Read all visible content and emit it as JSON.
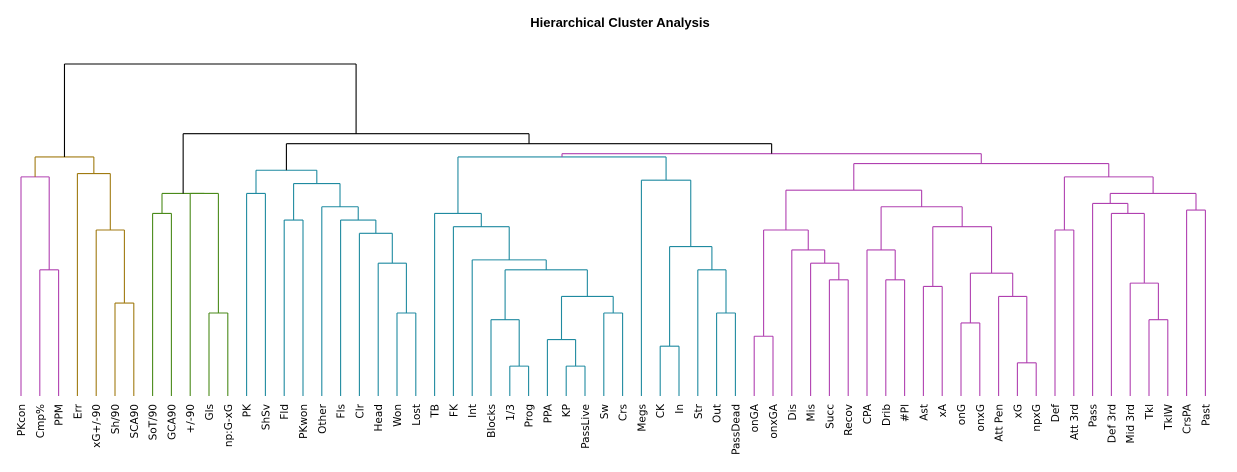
{
  "chart_data": {
    "type": "dendrogram",
    "title": "Hierarchical Cluster Analysis",
    "xlabel": "",
    "ylabel": "",
    "colors": {
      "root": "#000000",
      "clusterA": "#b040b0",
      "clusterB": "#a07a10",
      "clusterC": "#4a8a1a",
      "clusterD": "#1f8aa0",
      "clusterE": "#b040b0"
    },
    "leaves": [
      "PKcon",
      "Cmp%",
      "PPM",
      "Err",
      "xG+/-90",
      "Sh/90",
      "SCA90",
      "SoT/90",
      "GCA90",
      "+/-90",
      "Gls",
      "np:G-xG",
      "PK",
      "ShSv",
      "Fld",
      "PKwon",
      "Other",
      "Fls",
      "Clr",
      "Head",
      "Won",
      "Lost",
      "TB",
      "FK",
      "Int",
      "Blocks",
      "1/3",
      "Prog",
      "PPA",
      "KP",
      "PassLive",
      "Sw",
      "Crs",
      "Megs",
      "CK",
      "In",
      "Str",
      "Out",
      "PassDead",
      "onGA",
      "onxGA",
      "Dis",
      "Mis",
      "Succ",
      "Recov",
      "CPA",
      "Drib",
      "#Pl",
      "Ast",
      "xA",
      "onG",
      "onxG",
      "Att Pen",
      "xG",
      "npxG",
      "Def",
      "Att 3rd",
      "Pass",
      "Def 3rd",
      "Mid 3rd",
      "Tkl",
      "TklW",
      "CrsPA",
      "Past"
    ],
    "merges": [
      {
        "id": "A1",
        "children": [
          "L1",
          "L2"
        ],
        "height": 0.38,
        "color": "clusterA"
      },
      {
        "id": "A2",
        "children": [
          "L0",
          "A1"
        ],
        "height": 0.66,
        "color": "clusterA"
      },
      {
        "id": "B1",
        "children": [
          "L5",
          "L6"
        ],
        "height": 0.28,
        "color": "clusterB"
      },
      {
        "id": "B2",
        "children": [
          "L4",
          "B1"
        ],
        "height": 0.5,
        "color": "clusterB"
      },
      {
        "id": "B3",
        "children": [
          "L3",
          "B2"
        ],
        "height": 0.67,
        "color": "clusterB"
      },
      {
        "id": "AB",
        "children": [
          "A2",
          "B3"
        ],
        "height": 0.72,
        "color": "clusterB"
      },
      {
        "id": "C1",
        "children": [
          "L7",
          "L8"
        ],
        "height": 0.55,
        "color": "clusterC"
      },
      {
        "id": "C2",
        "children": [
          "L10",
          "L11"
        ],
        "height": 0.25,
        "color": "clusterC"
      },
      {
        "id": "C3",
        "children": [
          "L9",
          "C2"
        ],
        "height": 0.61,
        "color": "clusterC"
      },
      {
        "id": "C4",
        "children": [
          "C1",
          "C3"
        ],
        "height": 0.61,
        "color": "clusterC"
      },
      {
        "id": "D1",
        "children": [
          "L12",
          "L13"
        ],
        "height": 0.61,
        "color": "clusterD"
      },
      {
        "id": "D2",
        "children": [
          "L20",
          "L21"
        ],
        "height": 0.25,
        "color": "clusterD"
      },
      {
        "id": "D3",
        "children": [
          "L19",
          "D2"
        ],
        "height": 0.4,
        "color": "clusterD"
      },
      {
        "id": "D4",
        "children": [
          "L18",
          "D3"
        ],
        "height": 0.49,
        "color": "clusterD"
      },
      {
        "id": "D5",
        "children": [
          "L17",
          "D4"
        ],
        "height": 0.53,
        "color": "clusterD"
      },
      {
        "id": "D6",
        "children": [
          "L16",
          "D5"
        ],
        "height": 0.57,
        "color": "clusterD"
      },
      {
        "id": "D7",
        "children": [
          "L14",
          "L15"
        ],
        "height": 0.53,
        "color": "clusterD"
      },
      {
        "id": "D8",
        "children": [
          "D7",
          "D6"
        ],
        "height": 0.64,
        "color": "clusterD"
      },
      {
        "id": "D9",
        "children": [
          "D1",
          "D8"
        ],
        "height": 0.68,
        "color": "clusterD"
      },
      {
        "id": "D10",
        "children": [
          "L26",
          "L27"
        ],
        "height": 0.09,
        "color": "clusterD"
      },
      {
        "id": "D11",
        "children": [
          "L25",
          "D10"
        ],
        "height": 0.23,
        "color": "clusterD"
      },
      {
        "id": "D12",
        "children": [
          "L29",
          "L30"
        ],
        "height": 0.09,
        "color": "clusterD"
      },
      {
        "id": "D13",
        "children": [
          "L28",
          "D12"
        ],
        "height": 0.17,
        "color": "clusterD"
      },
      {
        "id": "D14",
        "children": [
          "L31",
          "L32"
        ],
        "height": 0.25,
        "color": "clusterD"
      },
      {
        "id": "D15",
        "children": [
          "D13",
          "D14"
        ],
        "height": 0.3,
        "color": "clusterD"
      },
      {
        "id": "D16",
        "children": [
          "D11",
          "D15"
        ],
        "height": 0.38,
        "color": "clusterD"
      },
      {
        "id": "D17",
        "children": [
          "L24",
          "D16"
        ],
        "height": 0.41,
        "color": "clusterD"
      },
      {
        "id": "D18",
        "children": [
          "L23",
          "D17"
        ],
        "height": 0.51,
        "color": "clusterD"
      },
      {
        "id": "D19",
        "children": [
          "L22",
          "D18"
        ],
        "height": 0.55,
        "color": "clusterD"
      },
      {
        "id": "D20",
        "children": [
          "L34",
          "L35"
        ],
        "height": 0.15,
        "color": "clusterD"
      },
      {
        "id": "D21",
        "children": [
          "L37",
          "L38"
        ],
        "height": 0.25,
        "color": "clusterD"
      },
      {
        "id": "D22",
        "children": [
          "L36",
          "D21"
        ],
        "height": 0.38,
        "color": "clusterD"
      },
      {
        "id": "D23",
        "children": [
          "D20",
          "D22"
        ],
        "height": 0.45,
        "color": "clusterD"
      },
      {
        "id": "D24",
        "children": [
          "L33",
          "D23"
        ],
        "height": 0.65,
        "color": "clusterD"
      },
      {
        "id": "D25",
        "children": [
          "D19",
          "D24"
        ],
        "height": 0.72,
        "color": "clusterD"
      },
      {
        "id": "E1",
        "children": [
          "L39",
          "L40"
        ],
        "height": 0.18,
        "color": "clusterE"
      },
      {
        "id": "E2",
        "children": [
          "L43",
          "L44"
        ],
        "height": 0.35,
        "color": "clusterE"
      },
      {
        "id": "E3",
        "children": [
          "L42",
          "E2"
        ],
        "height": 0.4,
        "color": "clusterE"
      },
      {
        "id": "E4",
        "children": [
          "L41",
          "E3"
        ],
        "height": 0.44,
        "color": "clusterE"
      },
      {
        "id": "E5",
        "children": [
          "E1",
          "E4"
        ],
        "height": 0.5,
        "color": "clusterE"
      },
      {
        "id": "E6",
        "children": [
          "L46",
          "L47"
        ],
        "height": 0.35,
        "color": "clusterE"
      },
      {
        "id": "E7",
        "children": [
          "L45",
          "E6"
        ],
        "height": 0.44,
        "color": "clusterE"
      },
      {
        "id": "E8",
        "children": [
          "L53",
          "L54"
        ],
        "height": 0.1,
        "color": "clusterE"
      },
      {
        "id": "E9",
        "children": [
          "L52",
          "E8"
        ],
        "height": 0.3,
        "color": "clusterE"
      },
      {
        "id": "E10",
        "children": [
          "L50",
          "L51"
        ],
        "height": 0.22,
        "color": "clusterE"
      },
      {
        "id": "E11",
        "children": [
          "E10",
          "E9"
        ],
        "height": 0.37,
        "color": "clusterE"
      },
      {
        "id": "E12",
        "children": [
          "L48",
          "L49"
        ],
        "height": 0.33,
        "color": "clusterE"
      },
      {
        "id": "E13",
        "children": [
          "E12",
          "E11"
        ],
        "height": 0.51,
        "color": "clusterE"
      },
      {
        "id": "E14",
        "children": [
          "E7",
          "E13"
        ],
        "height": 0.57,
        "color": "clusterE"
      },
      {
        "id": "E15",
        "children": [
          "E5",
          "E14"
        ],
        "height": 0.62,
        "color": "clusterE"
      },
      {
        "id": "E16",
        "children": [
          "L60",
          "L61"
        ],
        "height": 0.23,
        "color": "clusterE"
      },
      {
        "id": "E17",
        "children": [
          "L59",
          "E16"
        ],
        "height": 0.34,
        "color": "clusterE"
      },
      {
        "id": "E18",
        "children": [
          "L58",
          "E17"
        ],
        "height": 0.55,
        "color": "clusterE"
      },
      {
        "id": "E19",
        "children": [
          "L57",
          "E18"
        ],
        "height": 0.58,
        "color": "clusterE"
      },
      {
        "id": "E20",
        "children": [
          "L62",
          "L63"
        ],
        "height": 0.56,
        "color": "clusterE"
      },
      {
        "id": "E21",
        "children": [
          "E19",
          "E20"
        ],
        "height": 0.61,
        "color": "clusterE"
      },
      {
        "id": "E22",
        "children": [
          "L55",
          "L56"
        ],
        "height": 0.5,
        "color": "clusterE"
      },
      {
        "id": "E23",
        "children": [
          "E22",
          "E21"
        ],
        "height": 0.66,
        "color": "clusterE"
      },
      {
        "id": "E24",
        "children": [
          "E15",
          "E23"
        ],
        "height": 0.7,
        "color": "clusterE"
      },
      {
        "id": "DE",
        "children": [
          "D25",
          "E24"
        ],
        "height": 0.73,
        "color": "clusterE"
      },
      {
        "id": "CDE",
        "children": [
          "D9",
          "DE"
        ],
        "height": 0.76,
        "color": "root"
      },
      {
        "id": "CCDE",
        "children": [
          "C4",
          "CDE"
        ],
        "height": 0.79,
        "color": "root"
      },
      {
        "id": "ROOT",
        "children": [
          "AB",
          "CCDE"
        ],
        "height": 1.0,
        "color": "root"
      }
    ]
  }
}
